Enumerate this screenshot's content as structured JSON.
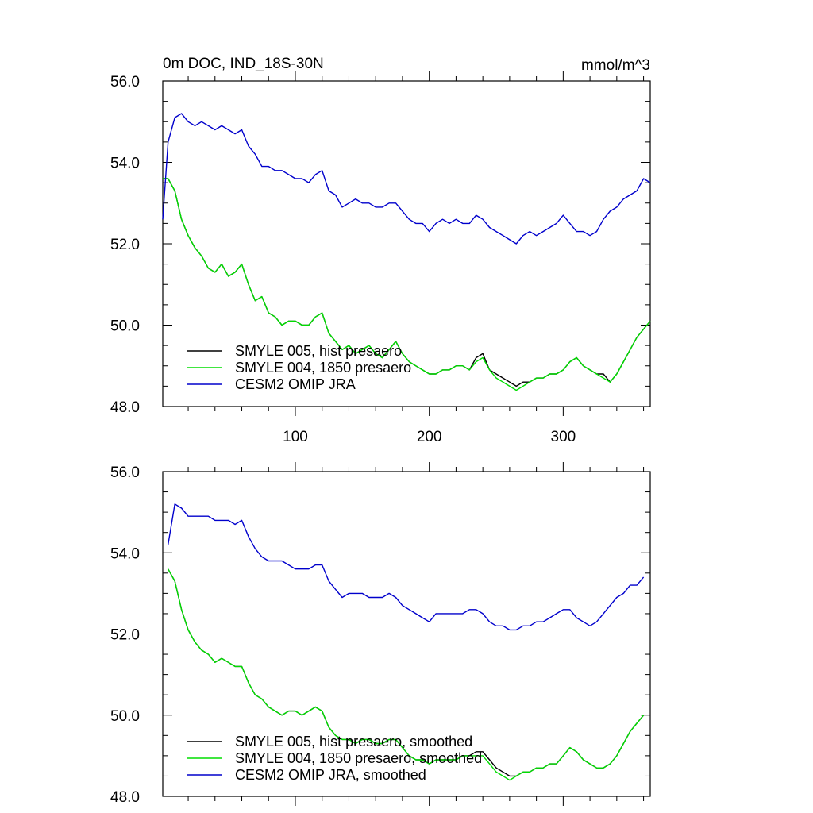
{
  "chart_data": [
    {
      "type": "line",
      "title_left": "0m DOC, IND_18S-30N",
      "title_right": "mmol/m^3",
      "xlabel": "",
      "ylabel": "",
      "xlim": [
        1,
        365
      ],
      "ylim": [
        48.0,
        56.0
      ],
      "x_ticks": [
        100,
        200,
        300
      ],
      "y_ticks": [
        "48.0",
        "50.0",
        "52.0",
        "54.0",
        "56.0"
      ],
      "legend_position": "lower-left",
      "series": [
        {
          "name": "SMYLE 005, hist presaero",
          "color": "#000000",
          "x": [
            1,
            5,
            10,
            15,
            20,
            25,
            30,
            35,
            40,
            45,
            50,
            55,
            60,
            65,
            70,
            75,
            80,
            85,
            90,
            95,
            100,
            105,
            110,
            115,
            120,
            125,
            130,
            135,
            140,
            145,
            150,
            155,
            160,
            165,
            170,
            175,
            180,
            185,
            190,
            195,
            200,
            205,
            210,
            215,
            220,
            225,
            230,
            235,
            240,
            245,
            250,
            255,
            260,
            265,
            270,
            275,
            280,
            285,
            290,
            295,
            300,
            305,
            310,
            315,
            320,
            325,
            330,
            335,
            340,
            345,
            350,
            355,
            360,
            365
          ],
          "y": [
            53.6,
            53.6,
            53.3,
            52.6,
            52.2,
            51.9,
            51.7,
            51.4,
            51.3,
            51.5,
            51.2,
            51.3,
            51.5,
            51.0,
            50.6,
            50.7,
            50.3,
            50.2,
            50.0,
            50.1,
            50.1,
            50.0,
            50.0,
            50.2,
            50.3,
            49.8,
            49.6,
            49.4,
            49.5,
            49.3,
            49.4,
            49.5,
            49.3,
            49.2,
            49.4,
            49.6,
            49.3,
            49.1,
            49.0,
            48.9,
            48.8,
            48.8,
            48.9,
            48.9,
            49.0,
            49.0,
            48.9,
            49.2,
            49.3,
            48.9,
            48.8,
            48.7,
            48.6,
            48.5,
            48.6,
            48.6,
            48.7,
            48.7,
            48.8,
            48.8,
            48.9,
            49.1,
            49.2,
            49.0,
            48.9,
            48.8,
            48.8,
            48.6,
            48.8,
            49.1,
            49.4,
            49.7,
            49.9,
            50.1
          ]
        },
        {
          "name": "SMYLE 004, 1850 presaero",
          "color": "#00dd00",
          "x": [
            1,
            5,
            10,
            15,
            20,
            25,
            30,
            35,
            40,
            45,
            50,
            55,
            60,
            65,
            70,
            75,
            80,
            85,
            90,
            95,
            100,
            105,
            110,
            115,
            120,
            125,
            130,
            135,
            140,
            145,
            150,
            155,
            160,
            165,
            170,
            175,
            180,
            185,
            190,
            195,
            200,
            205,
            210,
            215,
            220,
            225,
            230,
            235,
            240,
            245,
            250,
            255,
            260,
            265,
            270,
            275,
            280,
            285,
            290,
            295,
            300,
            305,
            310,
            315,
            320,
            325,
            330,
            335,
            340,
            345,
            350,
            355,
            360,
            365
          ],
          "y": [
            53.6,
            53.6,
            53.3,
            52.6,
            52.2,
            51.9,
            51.7,
            51.4,
            51.3,
            51.5,
            51.2,
            51.3,
            51.5,
            51.0,
            50.6,
            50.7,
            50.3,
            50.2,
            50.0,
            50.1,
            50.1,
            50.0,
            50.0,
            50.2,
            50.3,
            49.8,
            49.6,
            49.4,
            49.5,
            49.3,
            49.4,
            49.5,
            49.3,
            49.2,
            49.4,
            49.6,
            49.3,
            49.1,
            49.0,
            48.9,
            48.8,
            48.8,
            48.9,
            48.9,
            49.0,
            49.0,
            48.9,
            49.1,
            49.2,
            48.9,
            48.7,
            48.6,
            48.5,
            48.4,
            48.5,
            48.6,
            48.7,
            48.7,
            48.8,
            48.8,
            48.9,
            49.1,
            49.2,
            49.0,
            48.9,
            48.8,
            48.7,
            48.6,
            48.8,
            49.1,
            49.4,
            49.7,
            49.9,
            50.1
          ]
        },
        {
          "name": "CESM2 OMIP JRA",
          "color": "#0000cc",
          "x": [
            1,
            5,
            10,
            15,
            20,
            25,
            30,
            35,
            40,
            45,
            50,
            55,
            60,
            65,
            70,
            75,
            80,
            85,
            90,
            95,
            100,
            105,
            110,
            115,
            120,
            125,
            130,
            135,
            140,
            145,
            150,
            155,
            160,
            165,
            170,
            175,
            180,
            185,
            190,
            195,
            200,
            205,
            210,
            215,
            220,
            225,
            230,
            235,
            240,
            245,
            250,
            255,
            260,
            265,
            270,
            275,
            280,
            285,
            290,
            295,
            300,
            305,
            310,
            315,
            320,
            325,
            330,
            335,
            340,
            345,
            350,
            355,
            360,
            365
          ],
          "y": [
            52.6,
            54.5,
            55.1,
            55.2,
            55.0,
            54.9,
            55.0,
            54.9,
            54.8,
            54.9,
            54.8,
            54.7,
            54.8,
            54.4,
            54.2,
            53.9,
            53.9,
            53.8,
            53.8,
            53.7,
            53.6,
            53.6,
            53.5,
            53.7,
            53.8,
            53.3,
            53.2,
            52.9,
            53.0,
            53.1,
            53.0,
            53.0,
            52.9,
            52.9,
            53.0,
            53.0,
            52.8,
            52.6,
            52.5,
            52.5,
            52.3,
            52.5,
            52.6,
            52.5,
            52.6,
            52.5,
            52.5,
            52.7,
            52.6,
            52.4,
            52.3,
            52.2,
            52.1,
            52.0,
            52.2,
            52.3,
            52.2,
            52.3,
            52.4,
            52.5,
            52.7,
            52.5,
            52.3,
            52.3,
            52.2,
            52.3,
            52.6,
            52.8,
            52.9,
            53.1,
            53.2,
            53.3,
            53.6,
            53.5
          ]
        }
      ]
    },
    {
      "type": "line",
      "title_left": "",
      "title_right": "",
      "xlabel": "",
      "ylabel": "",
      "xlim": [
        1,
        365
      ],
      "ylim": [
        48.0,
        56.0
      ],
      "x_ticks": [
        100,
        200,
        300
      ],
      "y_ticks": [
        "48.0",
        "50.0",
        "52.0",
        "54.0",
        "56.0"
      ],
      "legend_position": "lower-left",
      "series": [
        {
          "name": "SMYLE 005, hist presaero, smoothed",
          "color": "#000000",
          "x": [
            5,
            10,
            15,
            20,
            25,
            30,
            35,
            40,
            45,
            50,
            55,
            60,
            65,
            70,
            75,
            80,
            85,
            90,
            95,
            100,
            105,
            110,
            115,
            120,
            125,
            130,
            135,
            140,
            145,
            150,
            155,
            160,
            165,
            170,
            175,
            180,
            185,
            190,
            195,
            200,
            205,
            210,
            215,
            220,
            225,
            230,
            235,
            240,
            245,
            250,
            255,
            260,
            265,
            270,
            275,
            280,
            285,
            290,
            295,
            300,
            305,
            310,
            315,
            320,
            325,
            330,
            335,
            340,
            345,
            350,
            355,
            360
          ],
          "y": [
            53.6,
            53.3,
            52.6,
            52.1,
            51.8,
            51.6,
            51.5,
            51.3,
            51.4,
            51.3,
            51.2,
            51.2,
            50.8,
            50.5,
            50.4,
            50.2,
            50.1,
            50.0,
            50.1,
            50.1,
            50.0,
            50.1,
            50.2,
            50.1,
            49.7,
            49.5,
            49.4,
            49.4,
            49.3,
            49.4,
            49.4,
            49.3,
            49.3,
            49.4,
            49.4,
            49.2,
            49.0,
            48.9,
            48.9,
            48.8,
            48.9,
            48.9,
            48.9,
            48.9,
            49.0,
            49.0,
            49.1,
            49.1,
            48.9,
            48.7,
            48.6,
            48.5,
            48.5,
            48.6,
            48.6,
            48.7,
            48.7,
            48.8,
            48.8,
            49.0,
            49.2,
            49.1,
            48.9,
            48.8,
            48.7,
            48.7,
            48.8,
            49.0,
            49.3,
            49.6,
            49.8,
            50.0
          ]
        },
        {
          "name": "SMYLE 004, 1850 presaero, smoothed",
          "color": "#00dd00",
          "x": [
            5,
            10,
            15,
            20,
            25,
            30,
            35,
            40,
            45,
            50,
            55,
            60,
            65,
            70,
            75,
            80,
            85,
            90,
            95,
            100,
            105,
            110,
            115,
            120,
            125,
            130,
            135,
            140,
            145,
            150,
            155,
            160,
            165,
            170,
            175,
            180,
            185,
            190,
            195,
            200,
            205,
            210,
            215,
            220,
            225,
            230,
            235,
            240,
            245,
            250,
            255,
            260,
            265,
            270,
            275,
            280,
            285,
            290,
            295,
            300,
            305,
            310,
            315,
            320,
            325,
            330,
            335,
            340,
            345,
            350,
            355,
            360
          ],
          "y": [
            53.6,
            53.3,
            52.6,
            52.1,
            51.8,
            51.6,
            51.5,
            51.3,
            51.4,
            51.3,
            51.2,
            51.2,
            50.8,
            50.5,
            50.4,
            50.2,
            50.1,
            50.0,
            50.1,
            50.1,
            50.0,
            50.1,
            50.2,
            50.1,
            49.7,
            49.5,
            49.4,
            49.4,
            49.3,
            49.4,
            49.4,
            49.3,
            49.3,
            49.4,
            49.4,
            49.2,
            49.0,
            48.9,
            48.9,
            48.8,
            48.9,
            48.9,
            48.9,
            48.9,
            49.0,
            49.0,
            49.0,
            49.0,
            48.8,
            48.6,
            48.5,
            48.4,
            48.5,
            48.6,
            48.6,
            48.7,
            48.7,
            48.8,
            48.8,
            49.0,
            49.2,
            49.1,
            48.9,
            48.8,
            48.7,
            48.7,
            48.8,
            49.0,
            49.3,
            49.6,
            49.8,
            50.0
          ]
        },
        {
          "name": "CESM2 OMIP JRA, smoothed",
          "color": "#0000cc",
          "x": [
            5,
            10,
            15,
            20,
            25,
            30,
            35,
            40,
            45,
            50,
            55,
            60,
            65,
            70,
            75,
            80,
            85,
            90,
            95,
            100,
            105,
            110,
            115,
            120,
            125,
            130,
            135,
            140,
            145,
            150,
            155,
            160,
            165,
            170,
            175,
            180,
            185,
            190,
            195,
            200,
            205,
            210,
            215,
            220,
            225,
            230,
            235,
            240,
            245,
            250,
            255,
            260,
            265,
            270,
            275,
            280,
            285,
            290,
            295,
            300,
            305,
            310,
            315,
            320,
            325,
            330,
            335,
            340,
            345,
            350,
            355,
            360
          ],
          "y": [
            54.2,
            55.2,
            55.1,
            54.9,
            54.9,
            54.9,
            54.9,
            54.8,
            54.8,
            54.8,
            54.7,
            54.8,
            54.4,
            54.1,
            53.9,
            53.8,
            53.8,
            53.8,
            53.7,
            53.6,
            53.6,
            53.6,
            53.7,
            53.7,
            53.3,
            53.1,
            52.9,
            53.0,
            53.0,
            53.0,
            52.9,
            52.9,
            52.9,
            53.0,
            52.9,
            52.7,
            52.6,
            52.5,
            52.4,
            52.3,
            52.5,
            52.5,
            52.5,
            52.5,
            52.5,
            52.6,
            52.6,
            52.5,
            52.3,
            52.2,
            52.2,
            52.1,
            52.1,
            52.2,
            52.2,
            52.3,
            52.3,
            52.4,
            52.5,
            52.6,
            52.6,
            52.4,
            52.3,
            52.2,
            52.3,
            52.5,
            52.7,
            52.9,
            53.0,
            53.2,
            53.2,
            53.4
          ]
        }
      ]
    }
  ]
}
